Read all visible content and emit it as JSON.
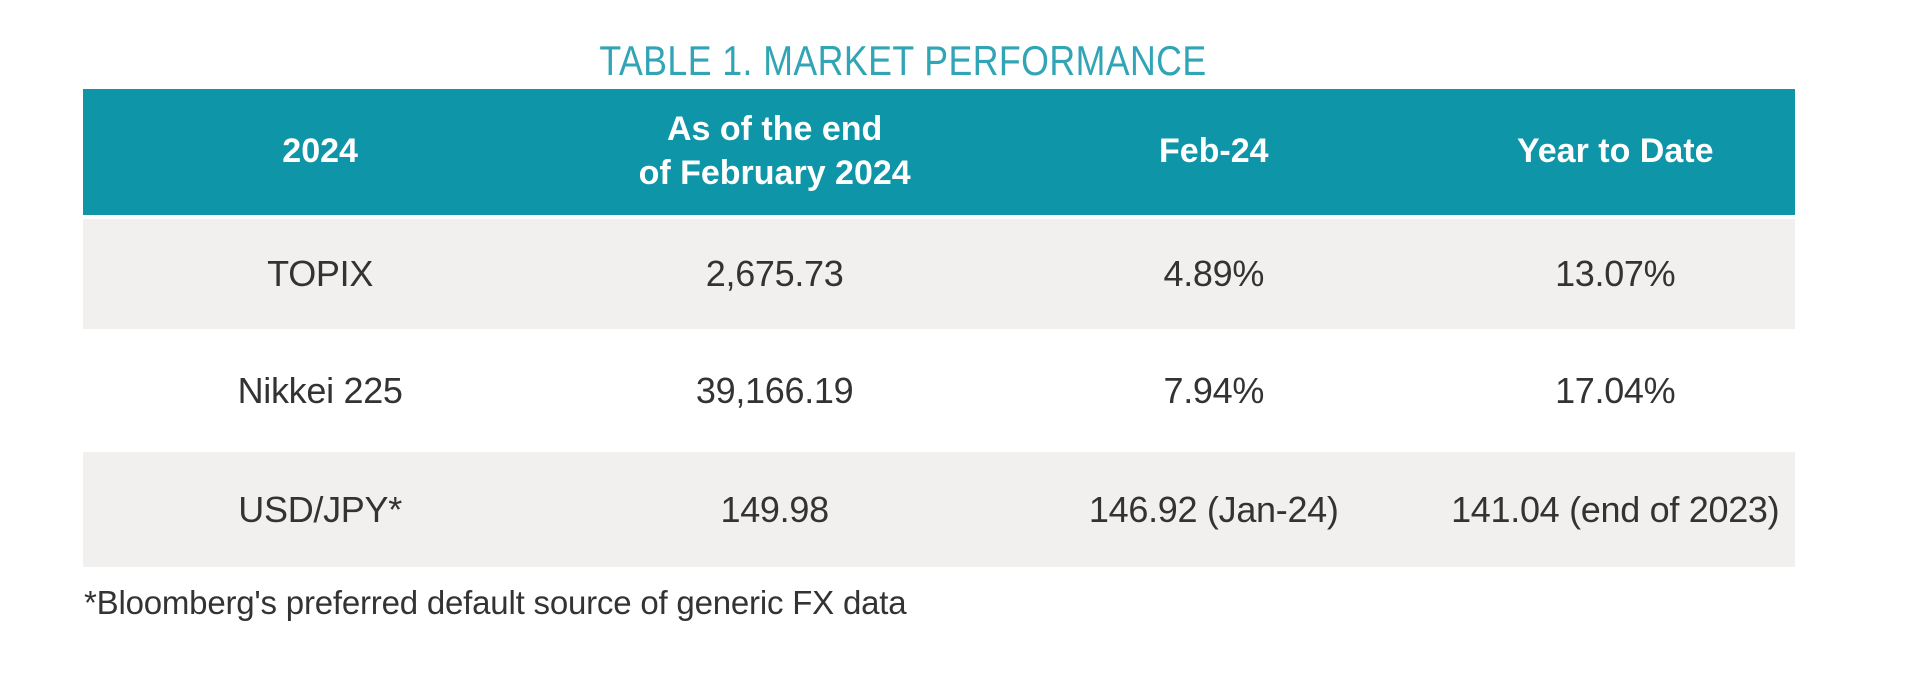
{
  "title": "TABLE 1. MARKET PERFORMANCE",
  "table": {
    "headers": [
      {
        "line1": "2024",
        "line2": ""
      },
      {
        "line1": "As of the end",
        "line2": "of February 2024"
      },
      {
        "line1": "Feb-24",
        "line2": ""
      },
      {
        "line1": "Year to Date",
        "line2": ""
      }
    ],
    "rows": [
      {
        "label": "TOPIX",
        "end_feb": "2,675.73",
        "feb": "4.89%",
        "ytd": "13.07%"
      },
      {
        "label": "Nikkei 225",
        "end_feb": "39,166.19",
        "feb": "7.94%",
        "ytd": "17.04%"
      },
      {
        "label": "USD/JPY*",
        "end_feb": "149.98",
        "feb": "146.92 (Jan-24)",
        "ytd": "141.04 (end of 2023)"
      }
    ]
  },
  "footnote": "*Bloomberg's preferred default source of generic FX data",
  "colors": {
    "header_bg": "#0e95a7",
    "header_text": "#ffffff",
    "title_text": "#31a5b6",
    "row_alt_bg": "#f1f0ee",
    "body_text": "#333333"
  }
}
